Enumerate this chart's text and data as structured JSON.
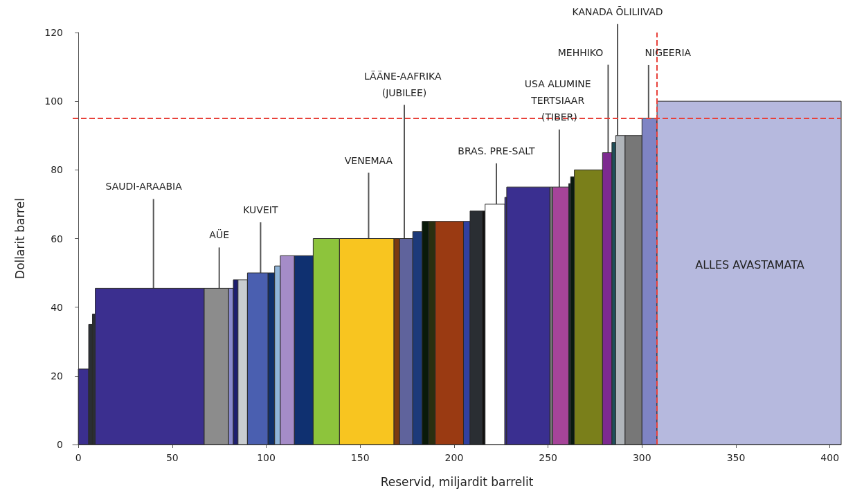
{
  "chart_data": {
    "type": "histogram",
    "xlabel": "Reservid, miljardit barrelit",
    "ylabel": "Dollarit barrel",
    "bins": [
      0,
      5.5,
      7.5,
      9,
      67,
      80,
      82.5,
      85,
      90,
      101,
      104.5,
      107.5,
      115,
      125,
      139,
      168,
      171,
      178,
      183,
      186.5,
      190,
      205,
      208.5,
      215,
      216.5,
      227,
      228,
      251,
      252.5,
      261,
      262,
      264,
      279,
      284,
      286,
      291,
      300,
      308,
      406
    ],
    "values": [
      22,
      35,
      38,
      45.5,
      45.5,
      45.5,
      48,
      48,
      50,
      50,
      52,
      55,
      55,
      60,
      60,
      60,
      60,
      62,
      65,
      65,
      65,
      65,
      68,
      68,
      70,
      72,
      75,
      75,
      75,
      76,
      78,
      80,
      85,
      88,
      90,
      90,
      95,
      100
    ],
    "colors": [
      "#3b2f8f",
      "#2a2e33",
      "#2a2e33",
      "#3b2f8f",
      "#8c8c8c",
      "#8888cc",
      "#1e1e6e",
      "#c8ccd0",
      "#4a5fb0",
      "#0f2f6a",
      "#8fb4d8",
      "#a58cc8",
      "#0f3070",
      "#8dc43c",
      "#f8c520",
      "#7a3a10",
      "#5f639c",
      "#1d3a7a",
      "#0a1a0a",
      "#2b2f10",
      "#9a3a12",
      "#3040a0",
      "#2a2e33",
      "#111111",
      "#ffffff",
      "#3b2f8f",
      "#3a2f90",
      "#777777",
      "#a64499",
      "#1a2a2a",
      "#0a1a10",
      "#7a7f1a",
      "#7d2a90",
      "#1f4f5a",
      "#b0b5ba",
      "#777777",
      "#7f84c4",
      "#b6b9de"
    ],
    "xlim": [
      -3,
      406
    ],
    "ylim": [
      0,
      120
    ],
    "xticks": [
      0,
      50,
      100,
      150,
      200,
      250,
      300,
      350,
      400
    ],
    "yticks": [
      0,
      20,
      40,
      60,
      80,
      100,
      120
    ],
    "ref_lines": [
      {
        "axis": "y",
        "value": 95,
        "color": "#e8413a",
        "line_style": "dashed"
      },
      {
        "axis": "x",
        "value": 308,
        "color": "#e8413a",
        "line_style": "dashed"
      }
    ],
    "annotations": [
      {
        "text": "SAUDI-ARAABIA",
        "x": 40,
        "y": 45.5
      },
      {
        "text": "AÜE",
        "x": 75,
        "y": 45.5
      },
      {
        "text": "KUVEIT",
        "x": 97,
        "y": 50
      },
      {
        "text": "VENEMAA",
        "x": 154.5,
        "y": 60
      },
      {
        "text": "LÄÄNE-AAFRIKA (JUBILEE)",
        "x": 173.5,
        "y": 60
      },
      {
        "text": "BRAS. PRE-SALT",
        "x": 222.5,
        "y": 70
      },
      {
        "text": "USA ALUMINE TERTSIAAR (TIBER)",
        "x": 256,
        "y": 75
      },
      {
        "text": "MEHHIKO",
        "x": 282,
        "y": 85
      },
      {
        "text": "KANADA ÕLILIIVAD",
        "x": 287,
        "y": 90
      },
      {
        "text": "NIGEERIA",
        "x": 303.5,
        "y": 95
      },
      "ALLES AVASTAMATA"
    ]
  }
}
